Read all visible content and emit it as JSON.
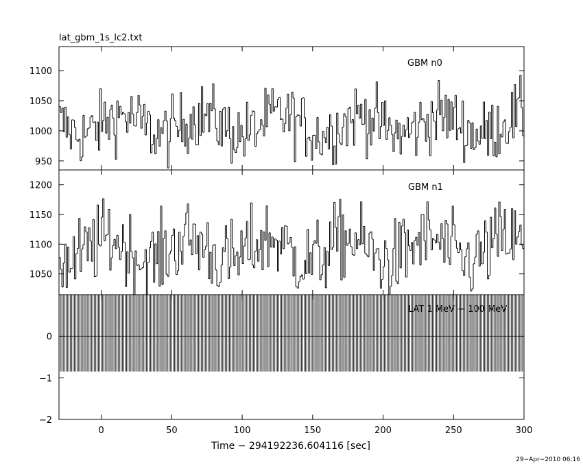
{
  "chart_data": [
    {
      "type": "line",
      "panel": "top",
      "title": "lat_gbm_1s_lc2.txt",
      "series": [
        {
          "name": "GBM n0",
          "baseline": 1010,
          "noise_amplitude": 45,
          "x_step": 1
        }
      ],
      "xlim": [
        -30,
        300
      ],
      "ylim": [
        935,
        1140
      ],
      "yticks": [
        950,
        1000,
        1050,
        1100
      ],
      "grid": false
    },
    {
      "type": "line",
      "panel": "middle",
      "series": [
        {
          "name": "GBM n1",
          "baseline": 1090,
          "noise_amplitude": 55,
          "x_step": 1
        }
      ],
      "xlim": [
        -30,
        300
      ],
      "ylim": [
        1015,
        1225
      ],
      "yticks": [
        1050,
        1100,
        1150,
        1200
      ],
      "grid": false
    },
    {
      "type": "bar",
      "panel": "bottom",
      "series": [
        {
          "name": "LAT 1 MeV − 100 MeV",
          "rect_top": 1.0,
          "rect_bottom": -0.85,
          "value": 0,
          "x_step": 1
        }
      ],
      "xlim": [
        -30,
        300
      ],
      "ylim": [
        -2,
        1
      ],
      "yticks": [
        0,
        -1,
        -2
      ],
      "xticks": [
        0,
        50,
        100,
        150,
        200,
        250,
        300
      ],
      "xlabel": "Time − 294192236.604116 [sec]",
      "grid": false
    }
  ],
  "footer": {
    "timestamp": "29−Apr−2010 06:16"
  }
}
